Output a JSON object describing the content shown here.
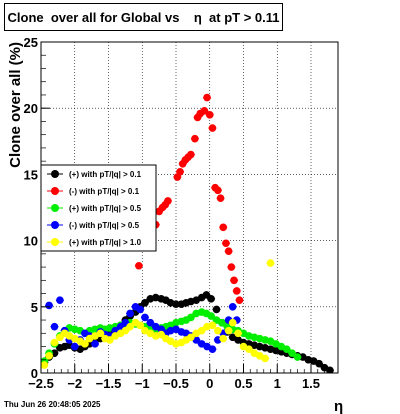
{
  "title": "Clone  over all for Global vs    η  at pT > 0.11",
  "footer": "Thu Jun 26 20:48:05 2025",
  "chart_data": {
    "type": "scatter",
    "title": "Clone  over all for Global vs    η  at pT > 0.11",
    "xlabel": "η",
    "ylabel": "Clone  over all (%)",
    "xlim": [
      -2.5,
      1.9
    ],
    "ylim": [
      0,
      25
    ],
    "xticks": [
      -2.5,
      -2,
      -1.5,
      -1,
      -0.5,
      0,
      0.5,
      1,
      1.5
    ],
    "xtick_labels": [
      "−2.5",
      "−2",
      "−1.5",
      "−1",
      "−0.5",
      "0",
      "0.5",
      "1",
      "1.5"
    ],
    "yticks": [
      0,
      5,
      10,
      15,
      20,
      25
    ],
    "ytick_labels": [
      "0",
      "5",
      "10",
      "15",
      "20",
      "25"
    ],
    "grid": true,
    "legend_position": "middle-left",
    "series": [
      {
        "name": "(+) with pT/|q| > 0.1",
        "color": "#000000",
        "points": [
          [
            -2.45,
            0.8
          ],
          [
            -2.38,
            1.2
          ],
          [
            -2.3,
            1.5
          ],
          [
            -2.22,
            1.9
          ],
          [
            -2.15,
            2.0
          ],
          [
            -2.08,
            2.1
          ],
          [
            -2.0,
            1.9
          ],
          [
            -1.92,
            1.8
          ],
          [
            -1.85,
            2.0
          ],
          [
            -1.78,
            2.2
          ],
          [
            -1.7,
            2.4
          ],
          [
            -1.62,
            2.6
          ],
          [
            -1.55,
            2.9
          ],
          [
            -1.48,
            3.1
          ],
          [
            -1.4,
            3.3
          ],
          [
            -1.32,
            3.6
          ],
          [
            -1.25,
            4.0
          ],
          [
            -1.18,
            4.3
          ],
          [
            -1.1,
            4.6
          ],
          [
            -1.03,
            5.0
          ],
          [
            -0.96,
            5.3
          ],
          [
            -0.88,
            5.6
          ],
          [
            -0.8,
            5.7
          ],
          [
            -0.72,
            5.6
          ],
          [
            -0.65,
            5.5
          ],
          [
            -0.58,
            5.3
          ],
          [
            -0.5,
            5.2
          ],
          [
            -0.42,
            5.2
          ],
          [
            -0.35,
            5.3
          ],
          [
            -0.28,
            5.4
          ],
          [
            -0.2,
            5.5
          ],
          [
            -0.12,
            5.7
          ],
          [
            -0.05,
            5.9
          ],
          [
            0.02,
            5.6
          ],
          [
            0.1,
            4.8
          ],
          [
            0.18,
            3.8
          ],
          [
            0.26,
            3.1
          ],
          [
            0.34,
            2.7
          ],
          [
            0.42,
            2.5
          ],
          [
            0.5,
            2.3
          ],
          [
            0.58,
            2.2
          ],
          [
            0.66,
            2.1
          ],
          [
            0.74,
            2.0
          ],
          [
            0.82,
            1.9
          ],
          [
            0.9,
            1.8
          ],
          [
            0.98,
            1.7
          ],
          [
            1.06,
            1.6
          ],
          [
            1.14,
            1.5
          ],
          [
            1.22,
            1.4
          ],
          [
            1.3,
            1.3
          ],
          [
            1.38,
            1.2
          ],
          [
            1.46,
            1.0
          ],
          [
            1.54,
            0.9
          ],
          [
            1.62,
            0.7
          ],
          [
            1.7,
            0.4
          ],
          [
            1.78,
            0.2
          ]
        ]
      },
      {
        "name": "(-) with pT/|q| > 0.1",
        "color": "#ff0000",
        "points": [
          [
            -1.05,
            8.1
          ],
          [
            -0.85,
            10.2
          ],
          [
            -0.8,
            11.2
          ],
          [
            -0.75,
            12.2
          ],
          [
            -0.7,
            12.5
          ],
          [
            -0.66,
            12.7
          ],
          [
            -0.62,
            13.0
          ],
          [
            -0.48,
            14.8
          ],
          [
            -0.44,
            15.2
          ],
          [
            -0.4,
            15.8
          ],
          [
            -0.36,
            16.1
          ],
          [
            -0.32,
            16.3
          ],
          [
            -0.28,
            16.5
          ],
          [
            -0.22,
            17.7
          ],
          [
            -0.18,
            19.3
          ],
          [
            -0.14,
            19.6
          ],
          [
            -0.08,
            19.8
          ],
          [
            -0.04,
            20.8
          ],
          [
            0.0,
            19.5
          ],
          [
            0.04,
            18.5
          ],
          [
            0.08,
            14.0
          ],
          [
            0.12,
            13.8
          ],
          [
            0.16,
            13.2
          ],
          [
            0.2,
            11.0
          ],
          [
            0.24,
            9.8
          ],
          [
            0.28,
            9.2
          ],
          [
            0.32,
            8.0
          ],
          [
            0.36,
            7.0
          ],
          [
            0.4,
            6.2
          ],
          [
            0.44,
            5.5
          ]
        ]
      },
      {
        "name": "(+) with pT/|q| > 0.5",
        "color": "#00ee00",
        "points": [
          [
            -2.45,
            0.9
          ],
          [
            -2.38,
            1.5
          ],
          [
            -2.3,
            2.2
          ],
          [
            -2.22,
            2.8
          ],
          [
            -2.15,
            3.2
          ],
          [
            -2.08,
            3.4
          ],
          [
            -2.0,
            3.3
          ],
          [
            -1.92,
            3.2
          ],
          [
            -1.85,
            3.0
          ],
          [
            -1.78,
            3.2
          ],
          [
            -1.7,
            3.3
          ],
          [
            -1.62,
            3.4
          ],
          [
            -1.55,
            3.3
          ],
          [
            -1.48,
            3.4
          ],
          [
            -1.4,
            3.5
          ],
          [
            -1.32,
            3.6
          ],
          [
            -1.25,
            3.7
          ],
          [
            -1.18,
            3.8
          ],
          [
            -1.1,
            3.7
          ],
          [
            -1.03,
            3.6
          ],
          [
            -0.96,
            3.5
          ],
          [
            -0.88,
            3.4
          ],
          [
            -0.8,
            3.3
          ],
          [
            -0.72,
            3.4
          ],
          [
            -0.65,
            3.5
          ],
          [
            -0.58,
            3.6
          ],
          [
            -0.5,
            3.8
          ],
          [
            -0.42,
            3.9
          ],
          [
            -0.35,
            4.0
          ],
          [
            -0.28,
            4.2
          ],
          [
            -0.2,
            4.5
          ],
          [
            -0.12,
            4.6
          ],
          [
            -0.05,
            4.5
          ],
          [
            0.02,
            4.3
          ],
          [
            0.1,
            4.0
          ],
          [
            0.18,
            3.8
          ],
          [
            0.26,
            3.5
          ],
          [
            0.34,
            3.3
          ],
          [
            0.42,
            3.2
          ],
          [
            0.5,
            3.0
          ],
          [
            0.58,
            2.8
          ],
          [
            0.66,
            2.7
          ],
          [
            0.74,
            2.6
          ],
          [
            0.82,
            2.5
          ],
          [
            0.9,
            2.4
          ],
          [
            0.98,
            2.2
          ],
          [
            1.06,
            2.0
          ],
          [
            1.14,
            1.8
          ],
          [
            1.22,
            1.5
          ],
          [
            1.3,
            1.2
          ]
        ]
      },
      {
        "name": "(-) with pT/|q| > 0.5",
        "color": "#0000ff",
        "points": [
          [
            -2.38,
            5.1
          ],
          [
            -2.3,
            3.5
          ],
          [
            -2.22,
            5.5
          ],
          [
            -2.15,
            3.2
          ],
          [
            -2.08,
            2.5
          ],
          [
            -2.0,
            2.0
          ],
          [
            -1.92,
            2.5
          ],
          [
            -1.85,
            3.0
          ],
          [
            -1.78,
            2.8
          ],
          [
            -1.7,
            2.2
          ],
          [
            -1.62,
            3.1
          ],
          [
            -1.55,
            2.9
          ],
          [
            -1.48,
            2.8
          ],
          [
            -1.4,
            3.2
          ],
          [
            -1.32,
            3.5
          ],
          [
            -1.25,
            3.8
          ],
          [
            -1.18,
            4.5
          ],
          [
            -1.1,
            5.0
          ],
          [
            -1.03,
            4.8
          ],
          [
            -0.96,
            4.2
          ],
          [
            -0.88,
            3.8
          ],
          [
            -0.8,
            3.5
          ],
          [
            -0.72,
            3.3
          ],
          [
            -0.65,
            3.0
          ],
          [
            -0.58,
            3.2
          ],
          [
            -0.5,
            3.3
          ],
          [
            -0.42,
            3.1
          ],
          [
            -0.35,
            3.0
          ],
          [
            -0.28,
            2.8
          ],
          [
            -0.2,
            2.5
          ],
          [
            -0.12,
            2.2
          ],
          [
            -0.04,
            2.0
          ],
          [
            0.04,
            1.8
          ],
          [
            0.12,
            2.5
          ],
          [
            0.2,
            3.0
          ],
          [
            0.28,
            4.0
          ],
          [
            0.34,
            5.0
          ],
          [
            0.4,
            4.0
          ]
        ]
      },
      {
        "name": "(+) with pT/|q| > 1.0",
        "color": "#ffff00",
        "points": [
          [
            -2.45,
            0.6
          ],
          [
            -2.38,
            1.3
          ],
          [
            -2.3,
            2.3
          ],
          [
            -2.22,
            2.7
          ],
          [
            -2.15,
            3.0
          ],
          [
            -2.08,
            2.8
          ],
          [
            -2.0,
            2.6
          ],
          [
            -1.92,
            2.4
          ],
          [
            -1.85,
            2.2
          ],
          [
            -1.78,
            2.6
          ],
          [
            -1.7,
            2.8
          ],
          [
            -1.62,
            3.0
          ],
          [
            -1.55,
            2.6
          ],
          [
            -1.48,
            2.5
          ],
          [
            -1.4,
            2.8
          ],
          [
            -1.32,
            3.0
          ],
          [
            -1.25,
            3.2
          ],
          [
            -1.18,
            3.5
          ],
          [
            -1.1,
            3.8
          ],
          [
            -1.03,
            3.6
          ],
          [
            -0.96,
            3.2
          ],
          [
            -0.88,
            3.0
          ],
          [
            -0.8,
            2.8
          ],
          [
            -0.72,
            2.9
          ],
          [
            -0.65,
            2.6
          ],
          [
            -0.58,
            2.4
          ],
          [
            -0.5,
            2.2
          ],
          [
            -0.42,
            2.3
          ],
          [
            -0.35,
            2.5
          ],
          [
            -0.28,
            2.7
          ],
          [
            -0.2,
            3.0
          ],
          [
            -0.12,
            3.2
          ],
          [
            -0.04,
            3.5
          ],
          [
            0.04,
            3.6
          ],
          [
            0.12,
            3.2
          ],
          [
            0.2,
            2.6
          ],
          [
            0.28,
            3.2
          ],
          [
            0.34,
            3.8
          ],
          [
            0.42,
            3.0
          ],
          [
            0.5,
            2.0
          ],
          [
            0.58,
            1.8
          ],
          [
            0.66,
            1.5
          ],
          [
            0.74,
            1.3
          ],
          [
            0.82,
            1.1
          ],
          [
            0.9,
            8.3
          ]
        ]
      }
    ]
  }
}
